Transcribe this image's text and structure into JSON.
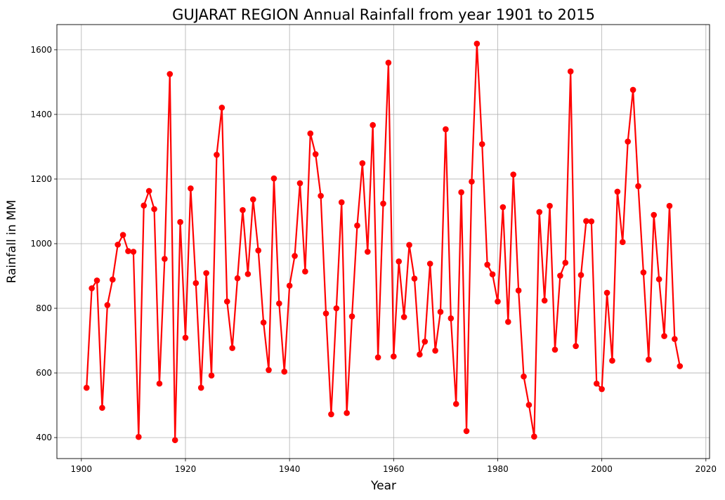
{
  "chart_data": {
    "type": "line",
    "title": "GUJARAT REGION Annual Rainfall from year 1901 to 2015",
    "xlabel": "Year",
    "ylabel": "Rainfall in MM",
    "xlim": [
      1895.3,
      2020.7
    ],
    "ylim": [
      335,
      1678
    ],
    "xticks": [
      1900,
      1920,
      1940,
      1960,
      1980,
      2000,
      2020
    ],
    "yticks": [
      400,
      600,
      800,
      1000,
      1200,
      1400,
      1600
    ],
    "grid": true,
    "line_color": "#ff0000",
    "marker": "circle",
    "x": [
      1901,
      1902,
      1903,
      1904,
      1905,
      1906,
      1907,
      1908,
      1909,
      1910,
      1911,
      1912,
      1913,
      1914,
      1915,
      1916,
      1917,
      1918,
      1919,
      1920,
      1921,
      1922,
      1923,
      1924,
      1925,
      1926,
      1927,
      1928,
      1929,
      1930,
      1931,
      1932,
      1933,
      1934,
      1935,
      1936,
      1937,
      1938,
      1939,
      1940,
      1941,
      1942,
      1943,
      1944,
      1945,
      1946,
      1947,
      1948,
      1949,
      1950,
      1951,
      1952,
      1953,
      1954,
      1955,
      1956,
      1957,
      1958,
      1959,
      1960,
      1961,
      1962,
      1963,
      1964,
      1965,
      1966,
      1967,
      1968,
      1969,
      1970,
      1971,
      1972,
      1973,
      1974,
      1975,
      1976,
      1977,
      1978,
      1979,
      1980,
      1981,
      1982,
      1983,
      1984,
      1985,
      1986,
      1987,
      1988,
      1989,
      1990,
      1991,
      1992,
      1993,
      1994,
      1995,
      1996,
      1997,
      1998,
      1999,
      2000,
      2001,
      2002,
      2003,
      2004,
      2005,
      2006,
      2007,
      2008,
      2009,
      2010,
      2011,
      2012,
      2013,
      2014,
      2015
    ],
    "y": [
      554,
      862,
      886,
      492,
      810,
      889,
      997,
      1027,
      977,
      975,
      402,
      1118,
      1163,
      1107,
      567,
      953,
      1525,
      392,
      1067,
      709,
      1171,
      878,
      554,
      909,
      592,
      1275,
      1421,
      821,
      677,
      893,
      1104,
      906,
      1137,
      979,
      756,
      609,
      1202,
      815,
      604,
      870,
      962,
      1187,
      914,
      1341,
      1277,
      1148,
      784,
      472,
      800,
      1128,
      476,
      775,
      1056,
      1249,
      975,
      1367,
      648,
      1124,
      1560,
      651,
      945,
      773,
      996,
      892,
      657,
      697,
      938,
      669,
      789,
      1354,
      769,
      504,
      1159,
      420,
      1192,
      1619,
      1308,
      935,
      905,
      821,
      1113,
      758,
      1214,
      855,
      589,
      501,
      403,
      1098,
      824,
      1117,
      672,
      901,
      941,
      1533,
      683,
      903,
      1070,
      1069,
      567,
      550,
      848,
      638,
      1161,
      1005,
      1316,
      1476,
      1178,
      911,
      641,
      1089,
      890,
      714,
      1117,
      705,
      621
    ]
  }
}
